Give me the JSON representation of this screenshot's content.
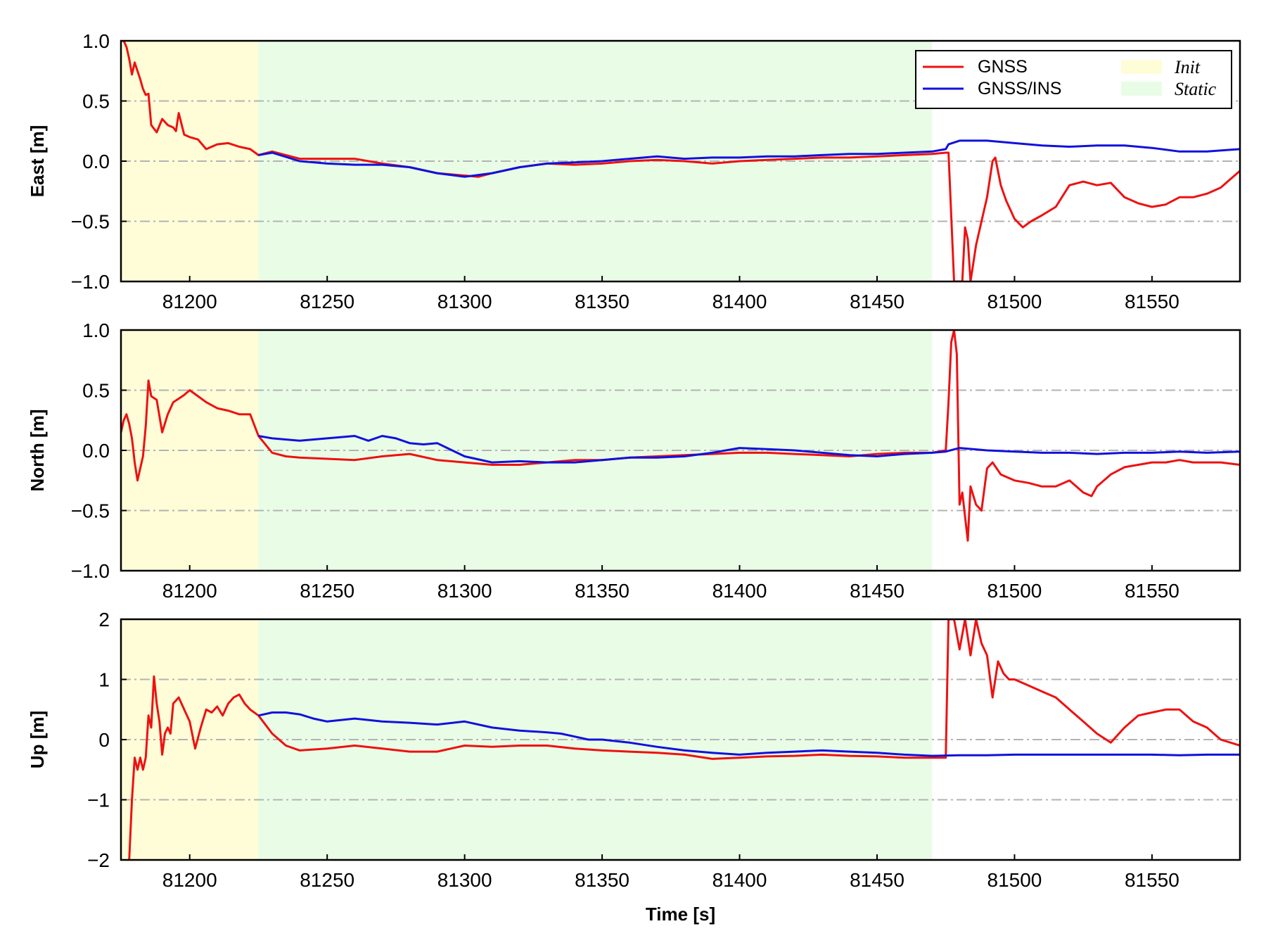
{
  "colors": {
    "gnss": "#ee1111",
    "gnss_ins": "#1111dd",
    "init_band": "#fefdd8",
    "static_band": "#e9fde6",
    "grid": "#b3b3b3"
  },
  "legend": {
    "items": [
      {
        "label": "GNSS",
        "kind": "line",
        "color": "#ee1111",
        "italic": false
      },
      {
        "label": "GNSS/INS",
        "kind": "line",
        "color": "#1111dd",
        "italic": false
      },
      {
        "label": "Init",
        "kind": "patch",
        "color": "#fefdd8",
        "italic": true
      },
      {
        "label": "Static",
        "kind": "patch",
        "color": "#e9fde6",
        "italic": true
      }
    ],
    "placement": "top-right"
  },
  "chart_data": [
    {
      "type": "line",
      "ylabel": "East [m]",
      "xlabel": "",
      "xlim": [
        81175,
        81582
      ],
      "ylim": [
        -1.0,
        1.0
      ],
      "xticks": [
        81200,
        81250,
        81300,
        81350,
        81400,
        81450,
        81500,
        81550
      ],
      "yticks": [
        -1.0,
        -0.5,
        0.0,
        0.5,
        1.0
      ],
      "ytick_labels": [
        "−1.0",
        "−0.5",
        "0.0",
        "0.5",
        "1.0"
      ],
      "grid": "horizontal dash-dot",
      "bands": [
        {
          "name": "Init",
          "x0": 81175,
          "x1": 81225
        },
        {
          "name": "Static",
          "x0": 81225,
          "x1": 81470
        }
      ],
      "series": [
        {
          "name": "GNSS",
          "x": [
            81175,
            81176,
            81177,
            81178,
            81179,
            81180,
            81182,
            81183,
            81184,
            81185,
            81186,
            81188,
            81190,
            81192,
            81194,
            81195,
            81196,
            81198,
            81200,
            81203,
            81206,
            81210,
            81214,
            81218,
            81222,
            81225,
            81230,
            81240,
            81250,
            81260,
            81270,
            81280,
            81290,
            81300,
            81305,
            81310,
            81320,
            81330,
            81340,
            81350,
            81360,
            81370,
            81380,
            81390,
            81400,
            81410,
            81420,
            81430,
            81440,
            81450,
            81460,
            81470,
            81475,
            81476,
            81478,
            81479,
            81480,
            81481,
            81482,
            81483,
            81484,
            81486,
            81488,
            81490,
            81492,
            81493,
            81495,
            81497,
            81500,
            81503,
            81506,
            81510,
            81515,
            81520,
            81525,
            81530,
            81535,
            81540,
            81545,
            81550,
            81555,
            81560,
            81565,
            81570,
            81575,
            81582
          ],
          "y": [
            1.0,
            1.0,
            0.95,
            0.85,
            0.72,
            0.82,
            0.68,
            0.6,
            0.55,
            0.56,
            0.3,
            0.24,
            0.35,
            0.3,
            0.28,
            0.25,
            0.4,
            0.22,
            0.2,
            0.18,
            0.1,
            0.14,
            0.15,
            0.12,
            0.1,
            0.05,
            0.08,
            0.02,
            0.02,
            0.02,
            -0.02,
            -0.05,
            -0.1,
            -0.12,
            -0.13,
            -0.1,
            -0.05,
            -0.02,
            -0.03,
            -0.02,
            0.0,
            0.01,
            0.0,
            -0.02,
            0.0,
            0.01,
            0.02,
            0.03,
            0.03,
            0.04,
            0.05,
            0.06,
            0.07,
            0.07,
            -1.0,
            -1.0,
            -1.0,
            -1.0,
            -0.55,
            -0.65,
            -1.0,
            -0.7,
            -0.5,
            -0.3,
            0.0,
            0.03,
            -0.2,
            -0.33,
            -0.48,
            -0.55,
            -0.5,
            -0.45,
            -0.38,
            -0.2,
            -0.17,
            -0.2,
            -0.18,
            -0.3,
            -0.35,
            -0.38,
            -0.36,
            -0.3,
            -0.3,
            -0.27,
            -0.22,
            -0.08
          ]
        },
        {
          "name": "GNSS/INS",
          "x": [
            81225,
            81230,
            81240,
            81250,
            81260,
            81270,
            81280,
            81290,
            81300,
            81310,
            81320,
            81330,
            81340,
            81350,
            81360,
            81370,
            81380,
            81390,
            81400,
            81410,
            81420,
            81430,
            81440,
            81450,
            81460,
            81470,
            81475,
            81476,
            81480,
            81490,
            81500,
            81510,
            81520,
            81530,
            81540,
            81550,
            81560,
            81570,
            81582
          ],
          "y": [
            0.05,
            0.07,
            0.0,
            -0.02,
            -0.03,
            -0.03,
            -0.05,
            -0.1,
            -0.13,
            -0.1,
            -0.05,
            -0.02,
            -0.01,
            0.0,
            0.02,
            0.04,
            0.02,
            0.03,
            0.03,
            0.04,
            0.04,
            0.05,
            0.06,
            0.06,
            0.07,
            0.08,
            0.1,
            0.14,
            0.17,
            0.17,
            0.15,
            0.13,
            0.12,
            0.13,
            0.13,
            0.11,
            0.08,
            0.08,
            0.1
          ]
        }
      ]
    },
    {
      "type": "line",
      "ylabel": "North [m]",
      "xlabel": "",
      "xlim": [
        81175,
        81582
      ],
      "ylim": [
        -1.0,
        1.0
      ],
      "xticks": [
        81200,
        81250,
        81300,
        81350,
        81400,
        81450,
        81500,
        81550
      ],
      "yticks": [
        -1.0,
        -0.5,
        0.0,
        0.5,
        1.0
      ],
      "ytick_labels": [
        "−1.0",
        "−0.5",
        "0.0",
        "0.5",
        "1.0"
      ],
      "grid": "horizontal dash-dot",
      "bands": [
        {
          "name": "Init",
          "x0": 81175,
          "x1": 81225
        },
        {
          "name": "Static",
          "x0": 81225,
          "x1": 81470
        }
      ],
      "series": [
        {
          "name": "GNSS",
          "x": [
            81175,
            81176,
            81177,
            81178,
            81179,
            81180,
            81181,
            81182,
            81183,
            81184,
            81185,
            81186,
            81188,
            81190,
            81192,
            81194,
            81196,
            81198,
            81200,
            81203,
            81206,
            81210,
            81214,
            81218,
            81222,
            81225,
            81230,
            81235,
            81240,
            81250,
            81260,
            81270,
            81280,
            81290,
            81300,
            81310,
            81320,
            81330,
            81340,
            81350,
            81360,
            81370,
            81380,
            81390,
            81400,
            81410,
            81420,
            81430,
            81440,
            81450,
            81460,
            81470,
            81475,
            81476,
            81477,
            81478,
            81479,
            81480,
            81481,
            81482,
            81483,
            81484,
            81486,
            81488,
            81490,
            81492,
            81495,
            81500,
            81505,
            81510,
            81515,
            81520,
            81525,
            81528,
            81530,
            81535,
            81540,
            81545,
            81550,
            81555,
            81560,
            81565,
            81570,
            81575,
            81582
          ],
          "y": [
            0.15,
            0.25,
            0.3,
            0.22,
            0.1,
            -0.1,
            -0.25,
            -0.15,
            -0.05,
            0.2,
            0.58,
            0.45,
            0.42,
            0.15,
            0.3,
            0.4,
            0.43,
            0.46,
            0.5,
            0.45,
            0.4,
            0.35,
            0.33,
            0.3,
            0.3,
            0.12,
            -0.02,
            -0.05,
            -0.06,
            -0.07,
            -0.08,
            -0.05,
            -0.03,
            -0.08,
            -0.1,
            -0.12,
            -0.12,
            -0.1,
            -0.08,
            -0.08,
            -0.06,
            -0.05,
            -0.04,
            -0.03,
            -0.02,
            -0.02,
            -0.03,
            -0.04,
            -0.05,
            -0.03,
            -0.02,
            -0.02,
            0.0,
            0.4,
            0.9,
            1.0,
            0.8,
            -0.45,
            -0.35,
            -0.55,
            -0.75,
            -0.3,
            -0.45,
            -0.5,
            -0.15,
            -0.1,
            -0.2,
            -0.25,
            -0.27,
            -0.3,
            -0.3,
            -0.25,
            -0.35,
            -0.38,
            -0.3,
            -0.2,
            -0.14,
            -0.12,
            -0.1,
            -0.1,
            -0.08,
            -0.1,
            -0.1,
            -0.1,
            -0.12
          ]
        },
        {
          "name": "GNSS/INS",
          "x": [
            81225,
            81230,
            81240,
            81250,
            81260,
            81265,
            81270,
            81275,
            81280,
            81285,
            81290,
            81300,
            81310,
            81320,
            81330,
            81340,
            81350,
            81360,
            81370,
            81380,
            81390,
            81400,
            81410,
            81420,
            81430,
            81440,
            81450,
            81460,
            81470,
            81475,
            81480,
            81490,
            81500,
            81510,
            81520,
            81530,
            81540,
            81550,
            81560,
            81570,
            81582
          ],
          "y": [
            0.12,
            0.1,
            0.08,
            0.1,
            0.12,
            0.08,
            0.12,
            0.1,
            0.06,
            0.05,
            0.06,
            -0.05,
            -0.1,
            -0.09,
            -0.1,
            -0.1,
            -0.08,
            -0.06,
            -0.06,
            -0.05,
            -0.02,
            0.02,
            0.01,
            0.0,
            -0.02,
            -0.04,
            -0.05,
            -0.03,
            -0.02,
            -0.01,
            0.02,
            0.0,
            -0.01,
            -0.02,
            -0.02,
            -0.03,
            -0.02,
            -0.02,
            -0.01,
            -0.02,
            -0.01
          ]
        }
      ]
    },
    {
      "type": "line",
      "ylabel": "Up [m]",
      "xlabel": "Time [s]",
      "xlim": [
        81175,
        81582
      ],
      "ylim": [
        -2,
        2
      ],
      "xticks": [
        81200,
        81250,
        81300,
        81350,
        81400,
        81450,
        81500,
        81550
      ],
      "yticks": [
        -2,
        -1,
        0,
        1,
        2
      ],
      "ytick_labels": [
        "−2",
        "−1",
        "0",
        "1",
        "2"
      ],
      "grid": "horizontal dash-dot",
      "bands": [
        {
          "name": "Init",
          "x0": 81175,
          "x1": 81225
        },
        {
          "name": "Static",
          "x0": 81225,
          "x1": 81470
        }
      ],
      "series": [
        {
          "name": "GNSS",
          "x": [
            81178,
            81179,
            81180,
            81181,
            81182,
            81183,
            81184,
            81185,
            81186,
            81187,
            81188,
            81189,
            81190,
            81191,
            81192,
            81193,
            81194,
            81196,
            81198,
            81200,
            81202,
            81204,
            81206,
            81208,
            81210,
            81212,
            81214,
            81216,
            81218,
            81220,
            81222,
            81225,
            81230,
            81235,
            81240,
            81250,
            81260,
            81270,
            81280,
            81290,
            81300,
            81310,
            81320,
            81330,
            81340,
            81350,
            81360,
            81370,
            81380,
            81390,
            81400,
            81410,
            81420,
            81430,
            81440,
            81450,
            81460,
            81470,
            81475,
            81476,
            81478,
            81480,
            81482,
            81484,
            81486,
            81488,
            81490,
            81492,
            81494,
            81496,
            81498,
            81500,
            81505,
            81510,
            81515,
            81520,
            81525,
            81530,
            81535,
            81540,
            81545,
            81550,
            81555,
            81560,
            81565,
            81570,
            81575,
            81582
          ],
          "y": [
            -2.0,
            -1.0,
            -0.3,
            -0.5,
            -0.3,
            -0.5,
            -0.3,
            0.4,
            0.2,
            1.05,
            0.6,
            0.3,
            -0.25,
            0.1,
            0.2,
            0.1,
            0.6,
            0.7,
            0.5,
            0.3,
            -0.15,
            0.2,
            0.5,
            0.45,
            0.55,
            0.4,
            0.6,
            0.7,
            0.75,
            0.6,
            0.5,
            0.4,
            0.1,
            -0.1,
            -0.18,
            -0.15,
            -0.1,
            -0.15,
            -0.2,
            -0.2,
            -0.1,
            -0.12,
            -0.1,
            -0.1,
            -0.15,
            -0.18,
            -0.2,
            -0.22,
            -0.25,
            -0.32,
            -0.3,
            -0.28,
            -0.27,
            -0.25,
            -0.27,
            -0.28,
            -0.3,
            -0.3,
            -0.3,
            2.0,
            2.0,
            1.5,
            2.0,
            1.4,
            2.0,
            1.6,
            1.4,
            0.7,
            1.3,
            1.1,
            1.0,
            1.0,
            0.9,
            0.8,
            0.7,
            0.5,
            0.3,
            0.1,
            -0.05,
            0.2,
            0.4,
            0.45,
            0.5,
            0.5,
            0.3,
            0.2,
            0.0,
            -0.1
          ]
        },
        {
          "name": "GNSS/INS",
          "x": [
            81225,
            81230,
            81235,
            81240,
            81245,
            81250,
            81260,
            81270,
            81280,
            81290,
            81300,
            81310,
            81320,
            81330,
            81335,
            81340,
            81345,
            81350,
            81360,
            81370,
            81380,
            81390,
            81400,
            81410,
            81420,
            81430,
            81440,
            81450,
            81460,
            81470,
            81480,
            81490,
            81500,
            81510,
            81520,
            81530,
            81540,
            81550,
            81560,
            81570,
            81582
          ],
          "y": [
            0.4,
            0.45,
            0.45,
            0.42,
            0.35,
            0.3,
            0.35,
            0.3,
            0.28,
            0.25,
            0.3,
            0.2,
            0.15,
            0.12,
            0.1,
            0.05,
            0.0,
            0.0,
            -0.05,
            -0.12,
            -0.18,
            -0.22,
            -0.25,
            -0.22,
            -0.2,
            -0.18,
            -0.2,
            -0.22,
            -0.25,
            -0.27,
            -0.26,
            -0.26,
            -0.25,
            -0.25,
            -0.25,
            -0.25,
            -0.25,
            -0.25,
            -0.26,
            -0.25,
            -0.25
          ]
        }
      ]
    }
  ]
}
